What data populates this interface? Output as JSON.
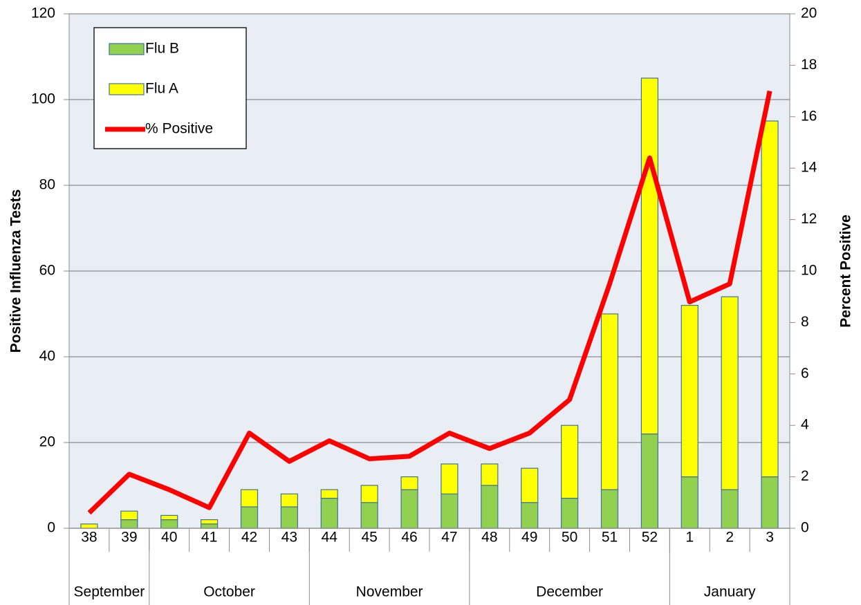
{
  "chart_data": {
    "type": "bar",
    "categories": [
      "38",
      "39",
      "40",
      "41",
      "42",
      "43",
      "44",
      "45",
      "46",
      "47",
      "48",
      "49",
      "50",
      "51",
      "52",
      "1",
      "2",
      "3"
    ],
    "groups": [
      {
        "label": "September",
        "from": "38",
        "to": "39"
      },
      {
        "label": "October",
        "from": "40",
        "to": "43"
      },
      {
        "label": "November",
        "from": "44",
        "to": "47"
      },
      {
        "label": "December",
        "from": "48",
        "to": "52"
      },
      {
        "label": "January",
        "from": "1",
        "to": "3"
      }
    ],
    "series": [
      {
        "name": "Flu B",
        "type": "bar",
        "color": "#92d050",
        "values": [
          0,
          2,
          2,
          1,
          5,
          5,
          7,
          6,
          9,
          8,
          10,
          6,
          7,
          9,
          22,
          12,
          9,
          12
        ]
      },
      {
        "name": "Flu A",
        "type": "bar",
        "color": "#ffff00",
        "values": [
          1,
          2,
          1,
          1,
          4,
          3,
          2,
          4,
          3,
          7,
          5,
          8,
          17,
          41,
          83,
          40,
          45,
          83
        ]
      },
      {
        "name": "% Positive",
        "type": "line",
        "axis": "y2",
        "color": "#ff0000",
        "values": [
          0.6,
          2.1,
          1.5,
          0.8,
          3.7,
          2.6,
          3.4,
          2.7,
          2.8,
          3.7,
          3.1,
          3.7,
          5.0,
          9.5,
          14.4,
          8.8,
          9.5,
          17.0
        ]
      }
    ],
    "ylabel": "Positive Influenza Tests",
    "y2label": "Percent Positive",
    "ylim": [
      0,
      120
    ],
    "yticks": [
      0,
      20,
      40,
      60,
      80,
      100,
      120
    ],
    "y2lim": [
      0,
      20
    ],
    "y2ticks": [
      0,
      2,
      4,
      6,
      8,
      10,
      12,
      14,
      16,
      18,
      20
    ],
    "stacked": true,
    "grid": true,
    "legend": "upper left"
  }
}
